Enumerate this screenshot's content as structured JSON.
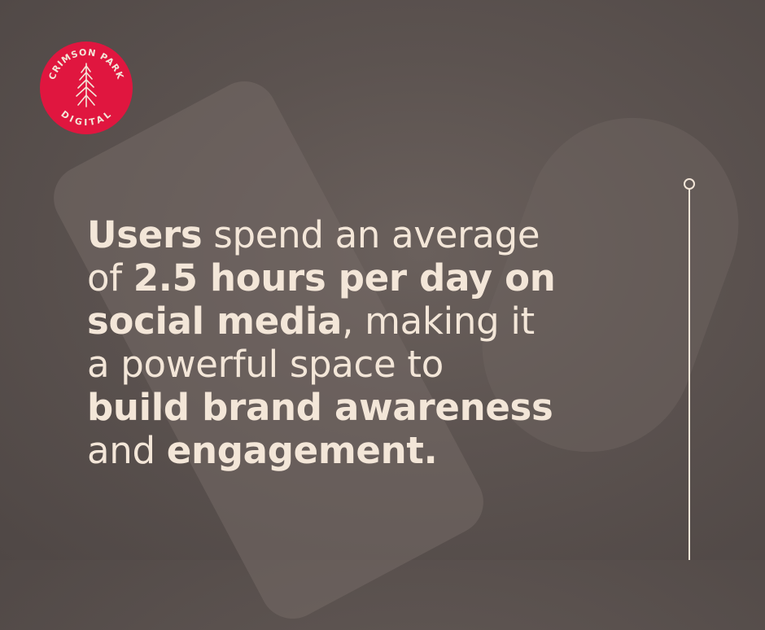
{
  "logo": {
    "text_top": "CRIMSON PARK",
    "text_bottom": "DIGITAL",
    "color": "#e0163f"
  },
  "text_color": "#f3e6d8",
  "headline": {
    "lines": [
      [
        {
          "t": "Users",
          "bold": true
        },
        {
          "t": " spend an average",
          "bold": false
        }
      ],
      [
        {
          "t": "of ",
          "bold": false
        },
        {
          "t": "2.5 hours per day on",
          "bold": true
        }
      ],
      [
        {
          "t": "social media",
          "bold": true
        },
        {
          "t": ", making it",
          "bold": false
        }
      ],
      [
        {
          "t": "a powerful space to",
          "bold": false
        }
      ],
      [
        {
          "t": "build brand awareness",
          "bold": true
        }
      ],
      [
        {
          "t": "and ",
          "bold": false
        },
        {
          "t": "engagement.",
          "bold": true
        }
      ]
    ]
  }
}
